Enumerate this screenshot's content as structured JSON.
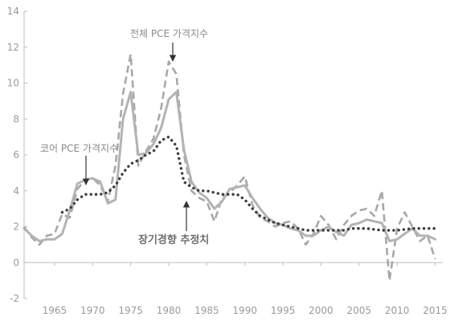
{
  "chart_data": {
    "type": "line",
    "title": "",
    "xlabel": "",
    "ylabel": "",
    "xlim": [
      1961,
      2016
    ],
    "ylim": [
      -2,
      14
    ],
    "x_ticks": [
      1965,
      1970,
      1975,
      1980,
      1985,
      1990,
      1995,
      2000,
      2005,
      2010,
      2015
    ],
    "y_ticks": [
      -2,
      0,
      2,
      4,
      6,
      8,
      10,
      12,
      14
    ],
    "grid": false,
    "colors": {
      "axis": "#bdbdbd",
      "tick_text": "#9a9a9a",
      "core": "#b3b3b3",
      "headline": "#a8a8a8",
      "trend": "#3c3c3c"
    },
    "series": [
      {
        "name": "전체 PCE 가격지수",
        "style": "dashed",
        "points": [
          [
            1961,
            2.0
          ],
          [
            1962,
            1.4
          ],
          [
            1963,
            1.0
          ],
          [
            1964,
            1.5
          ],
          [
            1965,
            1.6
          ],
          [
            1966,
            2.7
          ],
          [
            1967,
            2.5
          ],
          [
            1968,
            4.1
          ],
          [
            1969,
            4.6
          ],
          [
            1970,
            4.7
          ],
          [
            1971,
            4.3
          ],
          [
            1972,
            3.4
          ],
          [
            1973,
            5.4
          ],
          [
            1974,
            9.4
          ],
          [
            1975,
            11.6
          ],
          [
            1976,
            5.4
          ],
          [
            1977,
            6.2
          ],
          [
            1978,
            6.9
          ],
          [
            1979,
            8.6
          ],
          [
            1980,
            11.2
          ],
          [
            1981,
            10.5
          ],
          [
            1982,
            6.0
          ],
          [
            1983,
            4.0
          ],
          [
            1984,
            3.6
          ],
          [
            1985,
            3.4
          ],
          [
            1986,
            2.3
          ],
          [
            1987,
            3.6
          ],
          [
            1988,
            3.9
          ],
          [
            1989,
            4.3
          ],
          [
            1990,
            4.8
          ],
          [
            1991,
            3.2
          ],
          [
            1992,
            2.5
          ],
          [
            1993,
            2.3
          ],
          [
            1994,
            2.0
          ],
          [
            1995,
            2.2
          ],
          [
            1996,
            2.3
          ],
          [
            1997,
            1.9
          ],
          [
            1998,
            1.0
          ],
          [
            1999,
            1.6
          ],
          [
            2000,
            2.6
          ],
          [
            2001,
            2.1
          ],
          [
            2002,
            1.3
          ],
          [
            2003,
            2.1
          ],
          [
            2004,
            2.6
          ],
          [
            2005,
            2.9
          ],
          [
            2006,
            3.0
          ],
          [
            2007,
            2.6
          ],
          [
            2008,
            4.0
          ],
          [
            2009,
            -1.0
          ],
          [
            2010,
            1.9
          ],
          [
            2011,
            2.8
          ],
          [
            2012,
            2.0
          ],
          [
            2013,
            1.2
          ],
          [
            2014,
            1.5
          ],
          [
            2015,
            0.2
          ]
        ]
      },
      {
        "name": "코어 PCE 가격지수",
        "style": "solid",
        "points": [
          [
            1961,
            1.9
          ],
          [
            1962,
            1.5
          ],
          [
            1963,
            1.2
          ],
          [
            1964,
            1.3
          ],
          [
            1965,
            1.3
          ],
          [
            1966,
            1.6
          ],
          [
            1967,
            2.9
          ],
          [
            1968,
            4.4
          ],
          [
            1969,
            4.6
          ],
          [
            1970,
            4.7
          ],
          [
            1971,
            4.5
          ],
          [
            1972,
            3.3
          ],
          [
            1973,
            3.5
          ],
          [
            1974,
            8.0
          ],
          [
            1975,
            9.5
          ],
          [
            1976,
            6.0
          ],
          [
            1977,
            6.1
          ],
          [
            1978,
            6.6
          ],
          [
            1979,
            7.5
          ],
          [
            1980,
            9.1
          ],
          [
            1981,
            9.5
          ],
          [
            1982,
            6.3
          ],
          [
            1983,
            4.5
          ],
          [
            1984,
            3.9
          ],
          [
            1985,
            3.6
          ],
          [
            1986,
            3.0
          ],
          [
            1987,
            3.4
          ],
          [
            1988,
            4.1
          ],
          [
            1989,
            4.2
          ],
          [
            1990,
            4.3
          ],
          [
            1991,
            3.6
          ],
          [
            1992,
            3.0
          ],
          [
            1993,
            2.5
          ],
          [
            1994,
            2.2
          ],
          [
            1995,
            2.1
          ],
          [
            1996,
            1.9
          ],
          [
            1997,
            1.8
          ],
          [
            1998,
            1.5
          ],
          [
            1999,
            1.5
          ],
          [
            2000,
            1.8
          ],
          [
            2001,
            2.0
          ],
          [
            2002,
            1.7
          ],
          [
            2003,
            1.5
          ],
          [
            2004,
            2.1
          ],
          [
            2005,
            2.2
          ],
          [
            2006,
            2.4
          ],
          [
            2007,
            2.3
          ],
          [
            2008,
            2.2
          ],
          [
            2009,
            1.2
          ],
          [
            2010,
            1.3
          ],
          [
            2011,
            1.6
          ],
          [
            2012,
            1.9
          ],
          [
            2013,
            1.5
          ],
          [
            2014,
            1.5
          ],
          [
            2015,
            1.3
          ]
        ]
      },
      {
        "name": "장기경향 추정치",
        "style": "dotted",
        "points": [
          [
            1966,
            2.8
          ],
          [
            1967,
            3.0
          ],
          [
            1968,
            3.5
          ],
          [
            1969,
            3.8
          ],
          [
            1970,
            3.8
          ],
          [
            1971,
            3.8
          ],
          [
            1972,
            3.9
          ],
          [
            1973,
            4.3
          ],
          [
            1974,
            5.0
          ],
          [
            1975,
            5.5
          ],
          [
            1976,
            5.7
          ],
          [
            1977,
            6.0
          ],
          [
            1978,
            6.2
          ],
          [
            1979,
            6.8
          ],
          [
            1980,
            7.0
          ],
          [
            1981,
            6.5
          ],
          [
            1982,
            4.5
          ],
          [
            1983,
            4.2
          ],
          [
            1984,
            4.0
          ],
          [
            1985,
            4.0
          ],
          [
            1986,
            3.9
          ],
          [
            1987,
            3.8
          ],
          [
            1988,
            3.8
          ],
          [
            1989,
            3.8
          ],
          [
            1990,
            3.5
          ],
          [
            1991,
            3.0
          ],
          [
            1992,
            2.6
          ],
          [
            1993,
            2.4
          ],
          [
            1994,
            2.2
          ],
          [
            1995,
            2.1
          ],
          [
            1996,
            2.0
          ],
          [
            1997,
            1.9
          ],
          [
            1998,
            1.8
          ],
          [
            1999,
            1.8
          ],
          [
            2000,
            1.8
          ],
          [
            2001,
            1.8
          ],
          [
            2002,
            1.8
          ],
          [
            2003,
            1.8
          ],
          [
            2004,
            1.9
          ],
          [
            2005,
            1.9
          ],
          [
            2006,
            1.9
          ],
          [
            2007,
            1.85
          ],
          [
            2008,
            1.8
          ],
          [
            2009,
            1.8
          ],
          [
            2010,
            1.8
          ],
          [
            2011,
            1.85
          ],
          [
            2012,
            1.9
          ],
          [
            2013,
            1.9
          ],
          [
            2014,
            1.9
          ],
          [
            2015,
            1.9
          ]
        ]
      }
    ],
    "annotations": [
      {
        "text": "전체 PCE 가격지수",
        "arrow_to": [
          1981,
          11.2
        ]
      },
      {
        "text": "코어 PCE 가격지수",
        "arrow_to": [
          1970,
          4.7
        ]
      },
      {
        "text": "장기경향 추정치",
        "arrow_to": [
          1982.6,
          4.2
        ]
      }
    ]
  }
}
